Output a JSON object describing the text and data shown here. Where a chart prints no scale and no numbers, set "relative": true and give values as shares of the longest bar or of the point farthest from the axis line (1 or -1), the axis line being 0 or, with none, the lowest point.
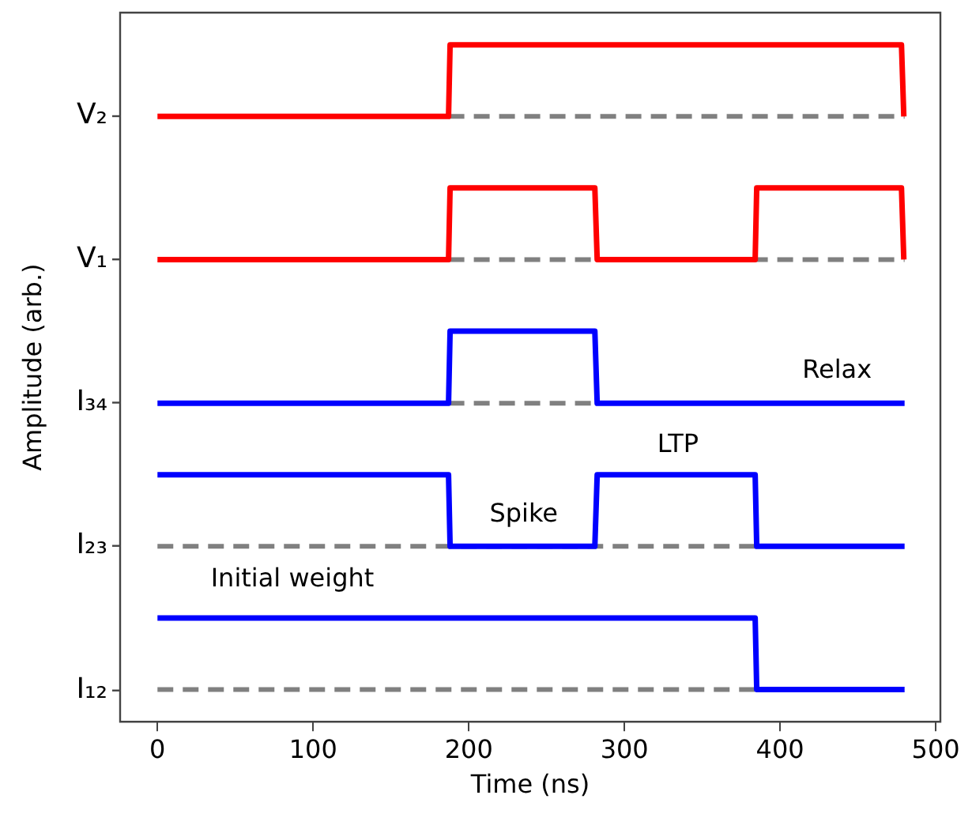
{
  "chart_data": {
    "type": "line",
    "xlabel": "Time (ns)",
    "ylabel": "Amplitude (arb.)",
    "relative": true,
    "xlim": [
      -24,
      503
    ],
    "xticks": [
      0,
      100,
      200,
      300,
      400,
      500
    ],
    "grid": false,
    "legend": false,
    "marker": "none",
    "series": [
      {
        "color": "#ff0000",
        "line_style": "solid",
        "x": [
          0,
          187,
          188,
          478,
          479.5
        ],
        "values": [
          0.889,
          0.889,
          1,
          1,
          0.889
        ]
      },
      {
        "color": "#ff0000",
        "line_style": "solid",
        "x": [
          0,
          187,
          188,
          281,
          282.5,
          384,
          385,
          478,
          479.5
        ],
        "values": [
          0.667,
          0.667,
          0.778,
          0.778,
          0.667,
          0.667,
          0.778,
          0.778,
          0.667
        ]
      },
      {
        "color": "#0000ff",
        "line_style": "solid",
        "x": [
          0,
          187,
          188,
          281,
          282.5,
          480
        ],
        "values": [
          0.444,
          0.444,
          0.556,
          0.556,
          0.444,
          0.444
        ]
      },
      {
        "color": "#0000ff",
        "line_style": "solid",
        "x": [
          0,
          187,
          188,
          281,
          282.5,
          384,
          385,
          480
        ],
        "values": [
          0.333,
          0.333,
          0.222,
          0.222,
          0.333,
          0.333,
          0.222,
          0.222
        ]
      },
      {
        "color": "#0000ff",
        "line_style": "solid",
        "x": [
          0,
          384,
          385,
          480
        ],
        "values": [
          0.111,
          0.111,
          0,
          0
        ]
      },
      {
        "color": "#808080",
        "line_style": "dashed",
        "x": [
          187,
          480
        ],
        "values": [
          0.889,
          0.889
        ]
      },
      {
        "color": "#808080",
        "line_style": "dashed",
        "x": [
          187,
          480
        ],
        "values": [
          0.667,
          0.667
        ]
      },
      {
        "color": "#808080",
        "line_style": "dashed",
        "x": [
          187,
          281
        ],
        "values": [
          0.444,
          0.444
        ]
      },
      {
        "color": "#808080",
        "line_style": "dashed",
        "x": [
          0,
          384
        ],
        "values": [
          0.222,
          0.222
        ]
      },
      {
        "color": "#808080",
        "line_style": "dashed",
        "x": [
          0,
          384
        ],
        "values": [
          0,
          0
        ]
      }
    ],
    "annotations": [
      "V₂",
      "V₁",
      "I₃₄",
      "I₂₃",
      "I₁₂",
      "Relax",
      "LTP",
      "Spike",
      "Initial weight"
    ]
  }
}
